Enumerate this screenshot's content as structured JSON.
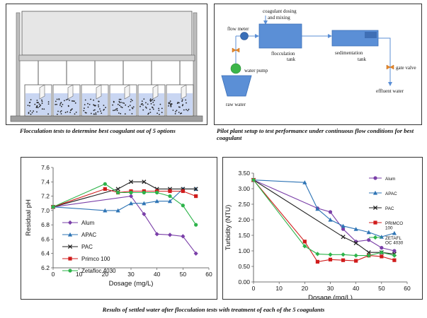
{
  "captions": {
    "flocculation_tests": "Flocculation tests to determine best coagulant out of 5 options",
    "pilot_plant": "Pilot plant setup to test performance under continuous flow conditions for best coagulant",
    "results": "Results of settled water after flocculation tests with treatment of each of the 5 coagulants"
  },
  "pilot_labels": {
    "coagulant": [
      "coagulant dosing",
      "and mixing"
    ],
    "flow_meter": "flow meter",
    "water_pump": "water pump",
    "raw_water": "raw water",
    "flocculation_tank": [
      "flocculation",
      "tank"
    ],
    "sedimentation_tank": [
      "sedimentation",
      "tank"
    ],
    "gate_valve": "gate valve",
    "effluent_water": "effluent water"
  },
  "colors": {
    "Alum": "#7a3fa8",
    "APAC": "#2e74b5",
    "PAC": "#222222",
    "Primco": "#d01c1c",
    "Zetafloc": "#2db34a",
    "water_blue": "#5b8fd6"
  },
  "chart_data": [
    {
      "type": "line",
      "xlabel": "Dosage (mg/L)",
      "ylabel": "Residual pH",
      "xlim": [
        0,
        60
      ],
      "ylim": [
        6.2,
        7.6
      ],
      "xticks": [
        0,
        10,
        20,
        30,
        40,
        50,
        60
      ],
      "yticks": [
        6.2,
        6.4,
        6.6,
        6.8,
        7.0,
        7.2,
        7.4,
        7.6
      ],
      "legend_position": "left",
      "grid": false,
      "series": [
        {
          "name": "Alum",
          "key": "Alum",
          "marker": "diamond",
          "x": [
            0,
            30,
            35,
            40,
            45,
            50,
            55
          ],
          "y": [
            7.05,
            7.2,
            6.95,
            6.67,
            6.66,
            6.64,
            6.4
          ]
        },
        {
          "name": "APAC",
          "key": "APAC",
          "marker": "triangle",
          "x": [
            0,
            20,
            25,
            30,
            35,
            40,
            45,
            50,
            55
          ],
          "y": [
            7.05,
            7.0,
            7.0,
            7.1,
            7.1,
            7.13,
            7.13,
            7.3,
            7.3
          ]
        },
        {
          "name": "PAC",
          "key": "PAC",
          "marker": "x",
          "x": [
            0,
            25,
            30,
            35,
            40,
            45,
            50,
            55
          ],
          "y": [
            7.05,
            7.3,
            7.4,
            7.4,
            7.3,
            7.3,
            7.3,
            7.3
          ]
        },
        {
          "name": "Primco 100",
          "key": "Primco",
          "marker": "square",
          "x": [
            0,
            20,
            25,
            30,
            35,
            40,
            45,
            50,
            55
          ],
          "y": [
            7.05,
            7.3,
            7.25,
            7.27,
            7.27,
            7.27,
            7.27,
            7.27,
            7.2
          ]
        },
        {
          "name": "Zetafloc 4030",
          "key": "Zetafloc",
          "marker": "circle",
          "x": [
            0,
            20,
            25,
            30,
            35,
            40,
            45,
            50,
            55
          ],
          "y": [
            7.05,
            7.37,
            7.25,
            7.25,
            7.25,
            7.25,
            7.2,
            7.07,
            6.8
          ]
        }
      ]
    },
    {
      "type": "line",
      "xlabel": "Dosage (mg/L)",
      "ylabel": "Turbidity (NTU)",
      "xlim": [
        0,
        60
      ],
      "ylim": [
        0,
        3.5
      ],
      "xticks": [
        0,
        10,
        20,
        30,
        40,
        50,
        60
      ],
      "yticks": [
        0.0,
        0.5,
        1.0,
        1.5,
        2.0,
        2.5,
        3.0,
        3.5
      ],
      "yticks_labels": [
        "0.00",
        "0.50",
        "1.00",
        "1.50",
        "2.00",
        "2.50",
        "3.00",
        "3.50"
      ],
      "legend_position": "right",
      "grid": false,
      "series": [
        {
          "name": "Alum",
          "key": "Alum",
          "marker": "circle",
          "x": [
            0,
            25,
            30,
            35,
            40,
            45,
            50,
            55
          ],
          "y": [
            3.28,
            2.37,
            2.25,
            1.7,
            1.3,
            1.35,
            1.1,
            1.0
          ]
        },
        {
          "name": "APAC",
          "key": "APAC",
          "marker": "triangle",
          "x": [
            0,
            20,
            25,
            30,
            35,
            40,
            45,
            50,
            55
          ],
          "y": [
            3.28,
            3.2,
            2.35,
            2.0,
            1.8,
            1.7,
            1.6,
            1.45,
            1.57
          ]
        },
        {
          "name": "PAC",
          "key": "PAC",
          "marker": "x",
          "x": [
            0,
            35,
            40,
            45,
            50,
            55
          ],
          "y": [
            3.28,
            1.45,
            1.25,
            0.95,
            0.95,
            0.9
          ]
        },
        {
          "name": [
            "PRIMCO",
            "100"
          ],
          "key": "Primco",
          "marker": "square",
          "x": [
            0,
            20,
            25,
            30,
            35,
            40,
            45,
            50,
            55
          ],
          "y": [
            3.28,
            1.3,
            0.65,
            0.72,
            0.7,
            0.68,
            0.85,
            0.82,
            0.7
          ]
        },
        {
          "name": [
            "ZETAFL",
            "OC 4030"
          ],
          "key": "Zetafloc",
          "marker": "diamond",
          "x": [
            0,
            20,
            25,
            30,
            35,
            40,
            45,
            50,
            55
          ],
          "y": [
            3.28,
            1.15,
            0.9,
            0.88,
            0.88,
            0.85,
            0.85,
            0.95,
            0.85
          ]
        }
      ]
    }
  ]
}
